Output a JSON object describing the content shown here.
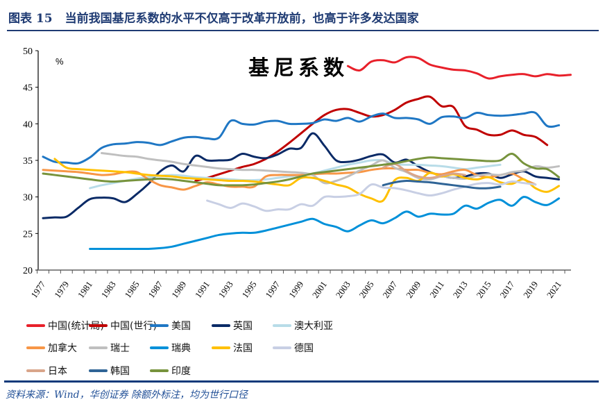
{
  "header": {
    "figure_no": "图表 15",
    "title": "当前我国基尼系数的水平不仅高于改革开放前，也高于许多发达国家"
  },
  "source": "资料来源：Wind，华创证券   除额外标注，均为世行口径",
  "chart_data": {
    "type": "line",
    "title": "基尼系数",
    "ylabel": "%",
    "ylim": [
      20,
      50
    ],
    "yticks": [
      20,
      25,
      30,
      35,
      40,
      45,
      50
    ],
    "xlim": [
      1977,
      2022
    ],
    "xticks": [
      1977,
      1979,
      1981,
      1983,
      1985,
      1987,
      1989,
      1991,
      1993,
      1995,
      1997,
      1999,
      2001,
      2003,
      2005,
      2007,
      2009,
      2011,
      2013,
      2015,
      2017,
      2019,
      2021
    ],
    "grid": false,
    "legend_position": "bottom",
    "series": [
      {
        "name": "中国(统计局)",
        "color": "#e8202a",
        "start": 2003,
        "values": [
          47.9,
          47.3,
          48.5,
          48.7,
          48.4,
          49.1,
          49.0,
          48.1,
          47.7,
          47.4,
          47.3,
          46.9,
          46.2,
          46.5,
          46.7,
          46.8,
          46.5,
          46.8,
          46.6,
          46.7
        ]
      },
      {
        "name": "中国(世行)",
        "color": "#c00000",
        "start": 1990,
        "values": [
          32.2,
          32.6,
          33.1,
          33.6,
          34.1,
          34.5,
          35.2,
          36.2,
          37.4,
          38.7,
          40.0,
          41.2,
          41.9,
          42.0,
          41.5,
          41.0,
          41.2,
          41.9,
          42.9,
          43.4,
          43.7,
          42.4,
          42.3,
          39.7,
          39.2,
          38.5,
          38.5,
          39.1,
          38.5,
          38.2,
          37.1
        ]
      },
      {
        "name": "美国",
        "color": "#1f77c4",
        "start": 1977,
        "values": [
          35.5,
          34.8,
          34.7,
          34.6,
          35.4,
          36.7,
          37.2,
          37.3,
          37.5,
          37.4,
          37.1,
          37.6,
          38.1,
          38.2,
          38.0,
          38.1,
          40.4,
          40.0,
          39.9,
          40.3,
          40.4,
          40.0,
          40.0,
          40.1,
          40.6,
          40.4,
          40.8,
          40.3,
          41.0,
          41.4,
          40.8,
          40.8,
          40.6,
          40.0,
          40.9,
          41.0,
          40.8,
          41.5,
          41.2,
          41.1,
          41.2,
          41.4,
          41.5,
          39.7,
          39.8
        ]
      },
      {
        "name": "英国",
        "color": "#0a2a66",
        "start": 1977,
        "values": [
          27.1,
          27.2,
          27.3,
          28.5,
          29.7,
          29.9,
          29.8,
          29.3,
          30.4,
          31.8,
          33.5,
          34.3,
          33.5,
          35.6,
          35.0,
          35.0,
          35.1,
          35.9,
          35.5,
          35.3,
          35.8,
          36.6,
          36.7,
          38.7,
          37.0,
          35.0,
          34.8,
          35.1,
          35.6,
          35.8,
          34.7,
          35.1,
          34.2,
          33.4,
          32.9,
          32.6,
          32.8,
          33.2,
          33.2,
          32.6,
          33.1,
          33.5,
          32.8,
          32.6,
          32.4
        ]
      },
      {
        "name": "澳大利亚",
        "color": "#b8dce8",
        "start": 1981,
        "values": [
          31.2,
          31.6,
          31.9,
          32.2,
          32.5,
          32.7,
          32.9,
          33.0,
          32.9,
          32.7,
          32.6,
          32.5,
          32.4,
          32.3,
          32.3,
          32.4,
          32.6,
          32.8,
          33.0,
          33.2,
          33.6,
          34.0,
          34.4,
          34.7,
          35.0,
          35.0,
          34.5,
          34.4,
          34.4,
          34.3,
          34.2,
          34.0,
          33.8,
          34.0,
          34.2,
          34.4
        ]
      },
      {
        "name": "加拿大",
        "color": "#f79646",
        "start": 1977,
        "values": [
          33.7,
          33.6,
          33.5,
          33.4,
          33.2,
          33.0,
          33.1,
          33.4,
          33.4,
          32.4,
          31.6,
          31.3,
          31.0,
          31.5,
          32.0,
          31.7,
          31.4,
          31.4,
          31.4,
          32.8,
          33.0,
          33.0,
          33.0,
          33.1,
          33.2,
          33.2,
          33.3,
          33.4,
          33.7,
          33.9,
          33.9,
          33.7,
          33.7,
          33.3,
          33.1,
          33.5,
          33.7,
          33.0,
          32.7,
          33.0,
          33.2,
          32.4,
          31.7
        ]
      },
      {
        "name": "瑞士",
        "color": "#bfbfbf",
        "start": 1982,
        "values": [
          36.0,
          35.8,
          35.6,
          35.5,
          35.2,
          35.0,
          34.8,
          34.5,
          34.3,
          34.1,
          33.9,
          33.8,
          33.7,
          33.7,
          33.6,
          33.5,
          33.4,
          33.3,
          33.0,
          31.9,
          32.2,
          32.8,
          33.6,
          34.3,
          35.0,
          34.0,
          33.4,
          32.6,
          32.4,
          32.8,
          32.6,
          32.5,
          32.9,
          33.1,
          33.0,
          33.4,
          33.6,
          34.2,
          34.0,
          34.2
        ]
      },
      {
        "name": "瑞典",
        "color": "#0090d9",
        "start": 1981,
        "values": [
          22.9,
          22.9,
          22.9,
          22.9,
          22.9,
          22.9,
          23.0,
          23.2,
          23.6,
          24.0,
          24.4,
          24.8,
          25.0,
          25.1,
          25.1,
          25.4,
          25.8,
          26.2,
          26.6,
          27.0,
          26.3,
          25.9,
          25.3,
          26.1,
          26.8,
          26.4,
          27.1,
          28.0,
          27.3,
          27.7,
          27.6,
          27.7,
          28.8,
          28.4,
          29.2,
          29.6,
          28.8,
          30.0,
          29.3,
          28.9,
          29.8
        ]
      },
      {
        "name": "法国",
        "color": "#ffc000",
        "start": 1978,
        "values": [
          35.2,
          34.0,
          33.8,
          33.7,
          33.6,
          33.5,
          33.4,
          33.2,
          33.0,
          32.9,
          32.8,
          32.6,
          32.5,
          32.4,
          32.3,
          32.2,
          32.2,
          32.1,
          31.9,
          31.7,
          31.6,
          32.6,
          32.6,
          32.2,
          31.7,
          31.3,
          30.4,
          29.8,
          29.5,
          32.3,
          32.6,
          32.2,
          33.3,
          32.8,
          33.1,
          32.6,
          32.4,
          32.7,
          32.0,
          31.8,
          32.4,
          31.2,
          30.7,
          31.5
        ]
      },
      {
        "name": "德国",
        "color": "#c8cfe4",
        "start": 1991,
        "values": [
          29.5,
          29.0,
          28.5,
          29.1,
          28.7,
          28.1,
          28.3,
          28.3,
          29.0,
          28.8,
          30.0,
          30.0,
          30.1,
          30.4,
          31.7,
          31.3,
          31.2,
          30.9,
          30.5,
          30.2,
          30.5,
          31.0,
          31.4,
          31.8,
          31.9,
          31.7,
          32.1,
          31.9,
          31.7
        ]
      },
      {
        "name": "日本",
        "color": "#d9a58a",
        "start": 2006,
        "values": [
          34.0,
          34.5,
          33.5,
          32.8,
          32.6,
          32.9,
          33.2,
          33.0
        ]
      },
      {
        "name": "韩国",
        "color": "#2f6496",
        "start": 2006,
        "values": [
          31.6,
          32.0,
          32.2,
          32.1,
          32.0,
          31.8,
          31.6,
          31.4,
          31.2,
          31.2,
          31.4
        ]
      },
      {
        "name": "印度",
        "color": "#77933c",
        "start": 1977,
        "values": [
          33.2,
          33.0,
          32.8,
          32.6,
          32.4,
          32.2,
          32.1,
          32.2,
          32.3,
          32.4,
          32.5,
          32.4,
          32.2,
          32.0,
          31.8,
          31.6,
          31.6,
          31.6,
          31.7,
          31.9,
          32.1,
          32.4,
          32.8,
          33.2,
          33.4,
          33.6,
          33.8,
          34.0,
          34.2,
          34.4,
          34.6,
          34.9,
          35.2,
          35.4,
          35.3,
          35.2,
          35.1,
          35.0,
          34.9,
          35.0,
          35.9,
          34.6,
          33.9,
          33.8,
          32.7
        ]
      }
    ]
  }
}
